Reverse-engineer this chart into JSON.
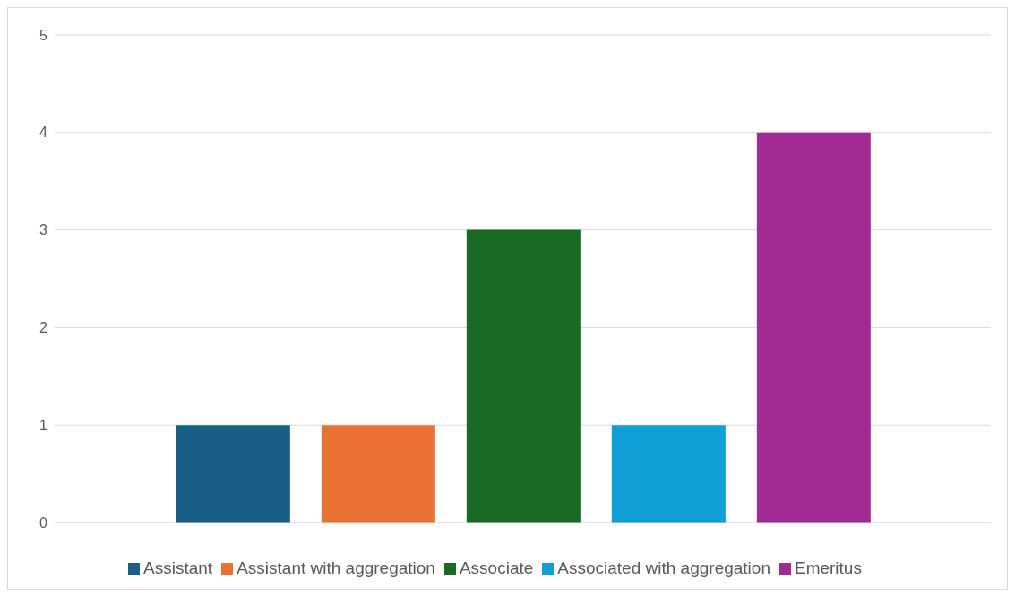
{
  "chart_data": {
    "type": "bar",
    "categories": [
      null
    ],
    "series": [
      {
        "name": "Assistant",
        "color": "#196086",
        "values": [
          1
        ]
      },
      {
        "name": "Assistant with aggregation",
        "color": "#e97132",
        "values": [
          1
        ]
      },
      {
        "name": "Associate",
        "color": "#196b24",
        "values": [
          3
        ]
      },
      {
        "name": "Associated with aggregation",
        "color": "#0f9ed5",
        "values": [
          1
        ]
      },
      {
        "name": "Emeritus",
        "color": "#a02b93",
        "values": [
          4
        ]
      }
    ],
    "ylim": [
      0,
      5
    ],
    "yticks": [
      0,
      1,
      2,
      3,
      4,
      5
    ],
    "grid": "y",
    "legend": "bottom"
  }
}
